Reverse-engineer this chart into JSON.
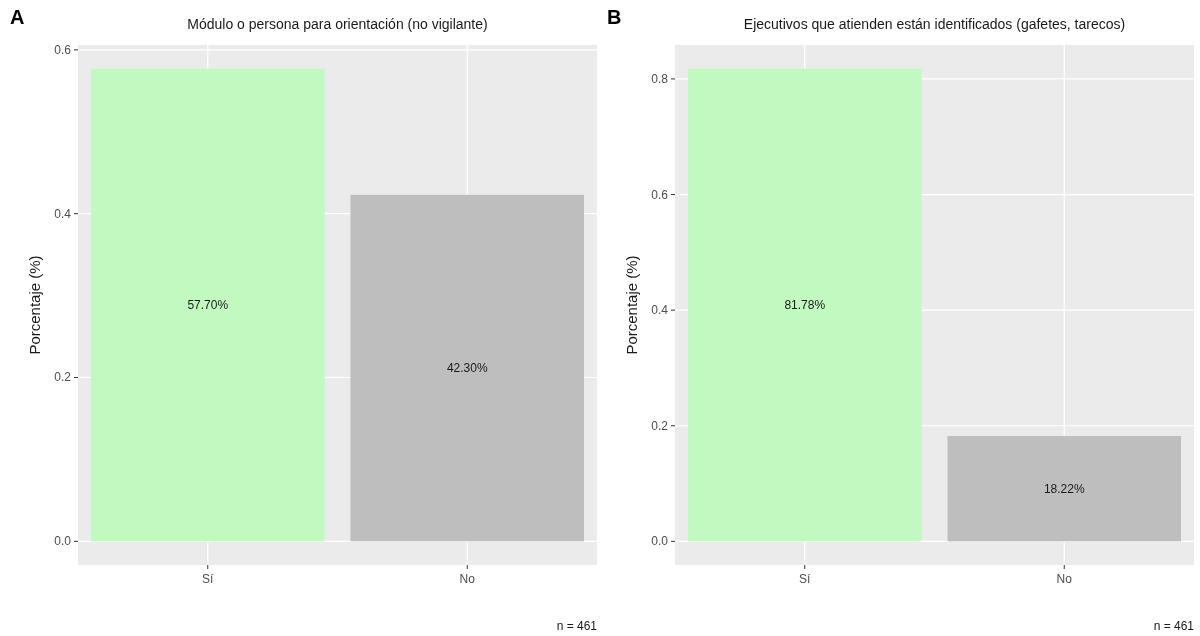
{
  "chart_data": [
    {
      "type": "bar",
      "title": "Módulo o persona para orientación (no vigilante)",
      "ylabel": "Porcentaje (%)",
      "annotations": [
        "A",
        "n = 461"
      ],
      "categories": [
        "Sí",
        "No"
      ],
      "values": [
        0.577,
        0.423
      ],
      "colors": [
        "#c1f9c1",
        "#bebebe"
      ],
      "value_labels": [
        "57.70%",
        "42.30%"
      ],
      "ylim": [
        -0.0289,
        0.6059
      ],
      "yticks": [
        {
          "value": 0,
          "label": "0.0"
        },
        {
          "value": 0.2,
          "label": "0.2"
        },
        {
          "value": 0.4,
          "label": "0.4"
        },
        {
          "value": 0.6,
          "label": "0.6"
        }
      ],
      "grid": true
    },
    {
      "type": "bar",
      "title": "Ejecutivos que atienden están identificados (gafetes, tarecos)",
      "ylabel": "Porcentaje (%)",
      "annotations": [
        "B",
        "n = 461"
      ],
      "categories": [
        "Sí",
        "No"
      ],
      "values": [
        0.8178,
        0.1822
      ],
      "colors": [
        "#c1f9c1",
        "#bebebe"
      ],
      "value_labels": [
        "81.78%",
        "18.22%"
      ],
      "ylim": [
        -0.0409,
        0.8587
      ],
      "yticks": [
        {
          "value": 0,
          "label": "0.0"
        },
        {
          "value": 0.2,
          "label": "0.2"
        },
        {
          "value": 0.4,
          "label": "0.4"
        },
        {
          "value": 0.6,
          "label": "0.6"
        },
        {
          "value": 0.8,
          "label": "0.8"
        }
      ],
      "grid": true
    }
  ]
}
